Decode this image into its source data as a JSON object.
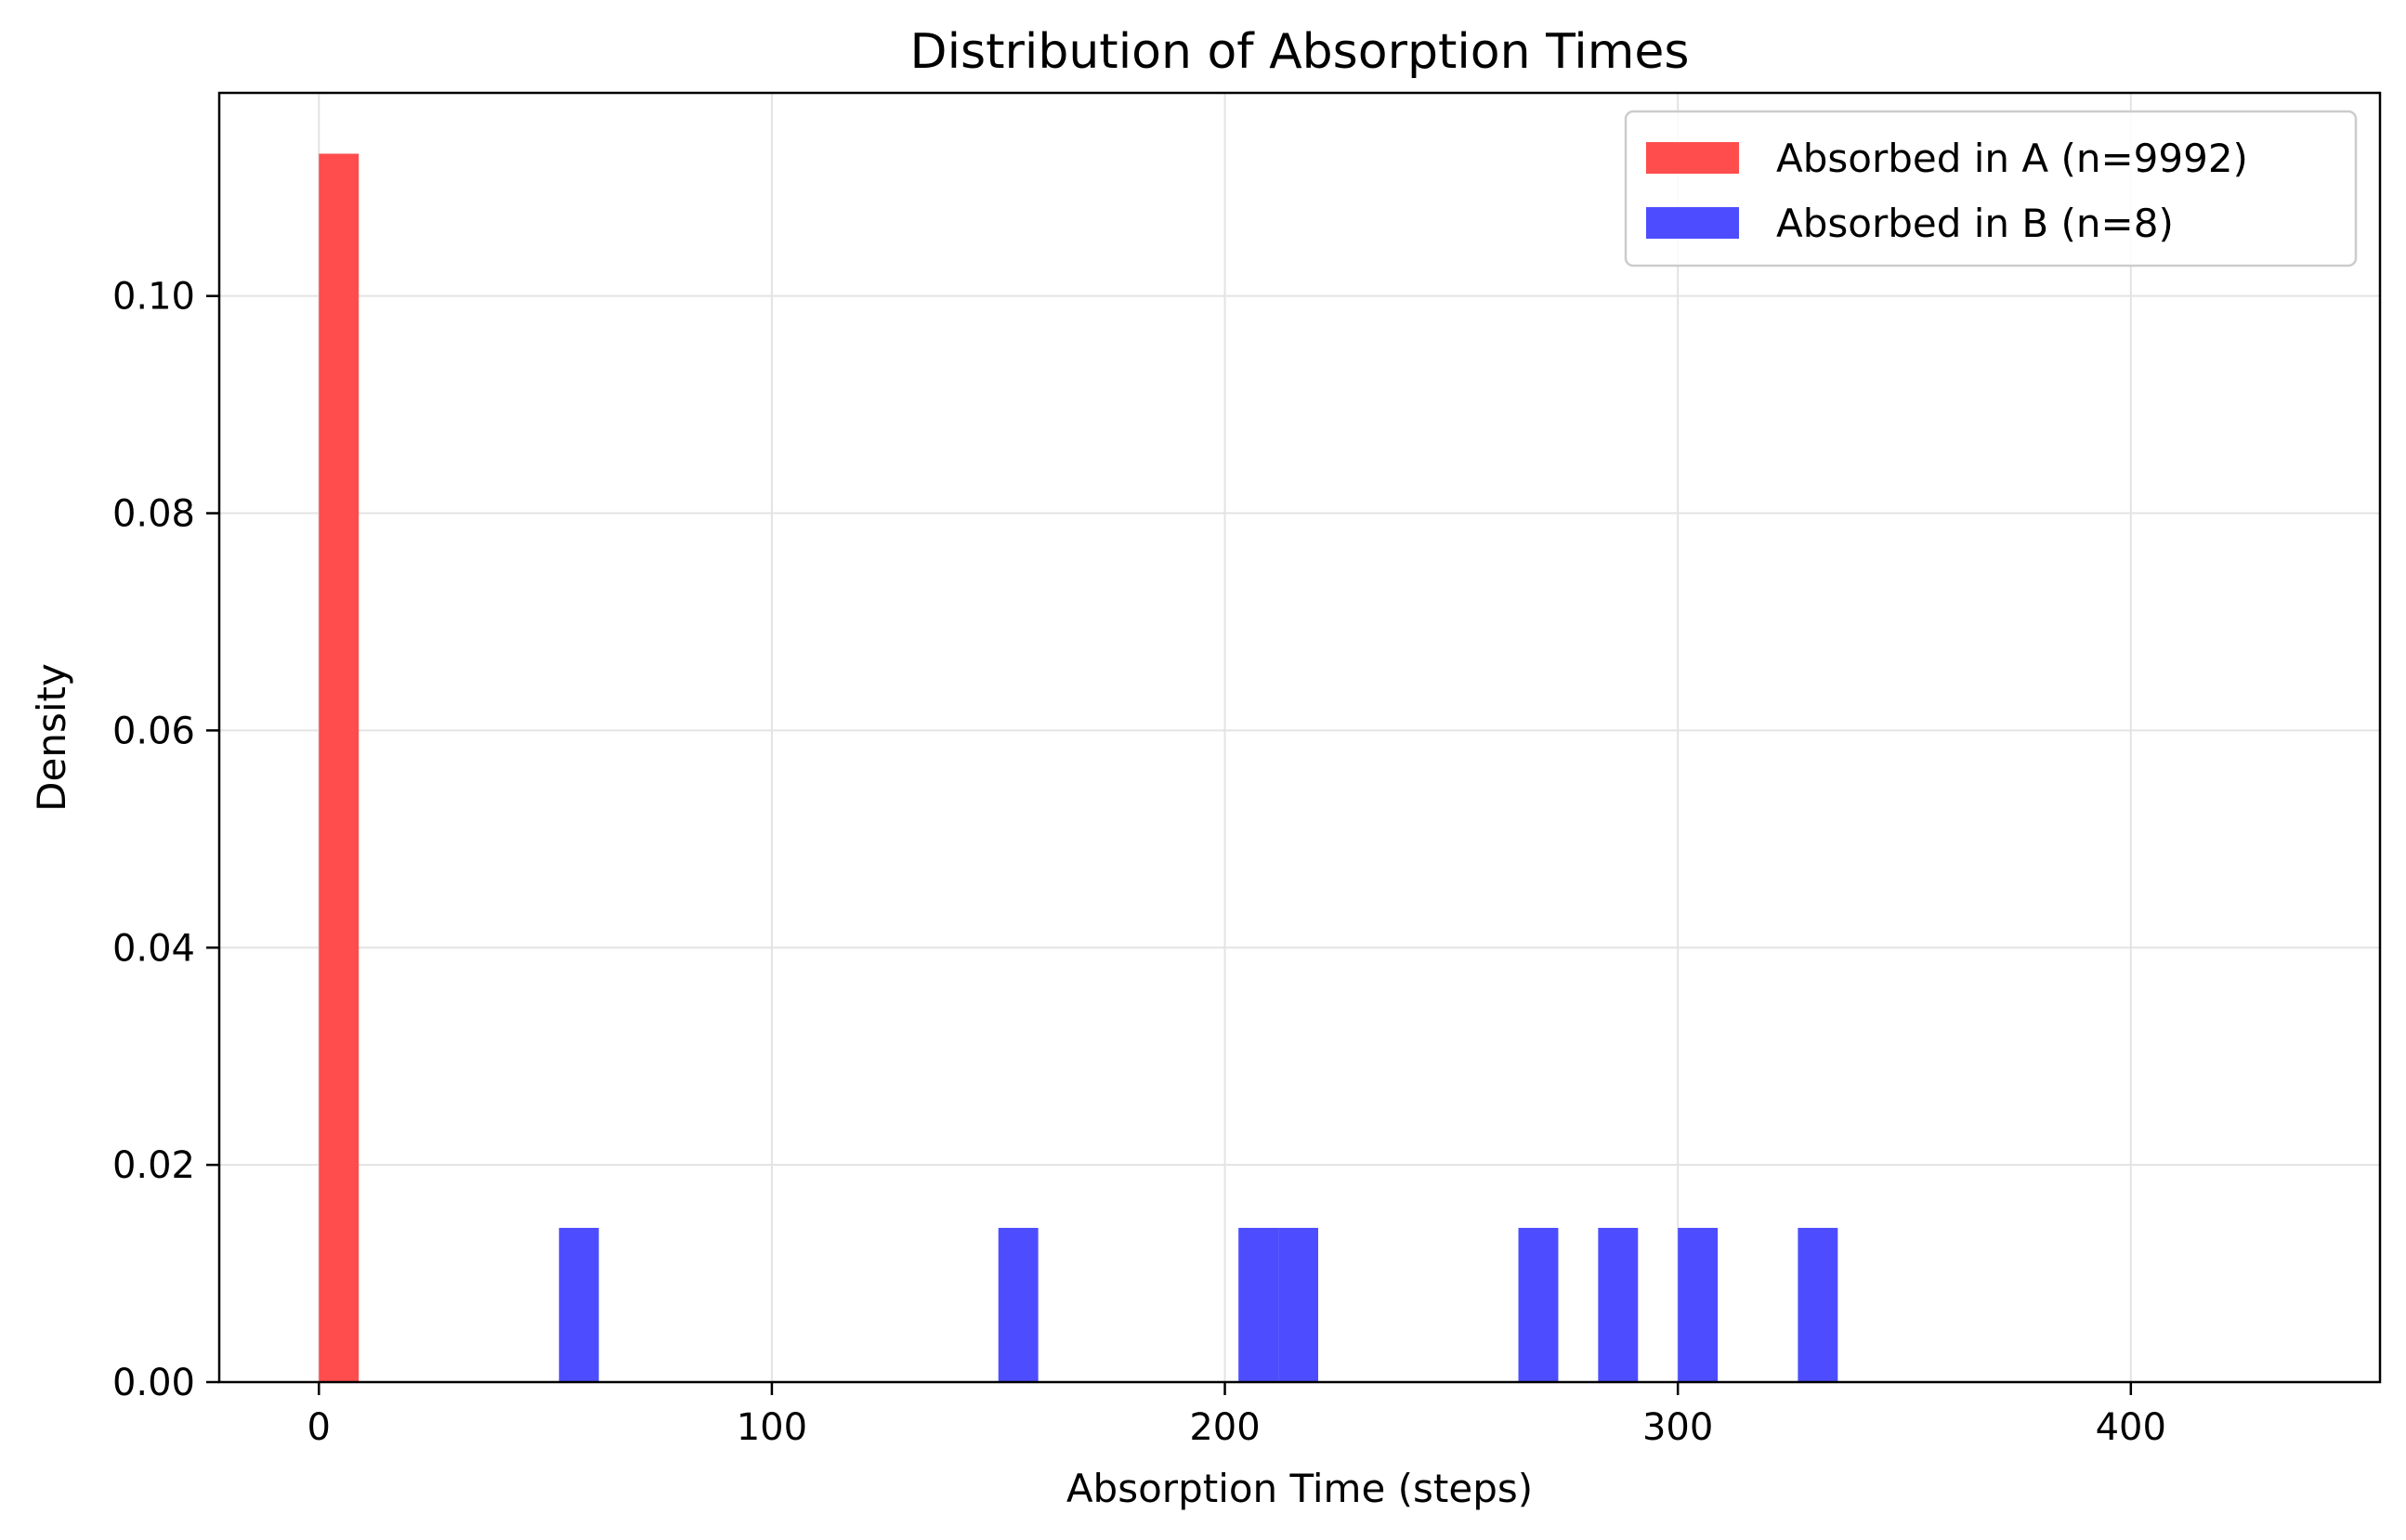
{
  "chart_data": {
    "type": "bar",
    "title": "Distribution of Absorption Times",
    "xlabel": "Absorption Time (steps)",
    "ylabel": "Density",
    "xlim": [
      -22,
      455
    ],
    "ylim": [
      0,
      0.1187
    ],
    "xticks": [
      0,
      100,
      200,
      300,
      400
    ],
    "xtick_labels": [
      "0",
      "100",
      "200",
      "300",
      "400"
    ],
    "yticks": [
      0.0,
      0.02,
      0.04,
      0.06,
      0.08,
      0.1
    ],
    "ytick_labels": [
      "0.00",
      "0.02",
      "0.04",
      "0.06",
      "0.08",
      "0.10"
    ],
    "grid": true,
    "legend_position": "top-right",
    "series": [
      {
        "name": "Absorbed in A (n=9992)",
        "color": "#ff4d4d",
        "bins": [
          {
            "x0": 0,
            "x1": 8.8,
            "y": 0.1131
          }
        ]
      },
      {
        "name": "Absorbed in B (n=8)",
        "color": "#4d4dff",
        "bins": [
          {
            "x0": 53.0,
            "x1": 61.8,
            "y": 0.0142
          },
          {
            "x0": 150.0,
            "x1": 158.8,
            "y": 0.0142
          },
          {
            "x0": 203.0,
            "x1": 211.8,
            "y": 0.0142
          },
          {
            "x0": 211.8,
            "x1": 220.6,
            "y": 0.0142
          },
          {
            "x0": 264.8,
            "x1": 273.6,
            "y": 0.0142
          },
          {
            "x0": 282.4,
            "x1": 291.2,
            "y": 0.0142
          },
          {
            "x0": 300.0,
            "x1": 308.8,
            "y": 0.0142
          },
          {
            "x0": 326.5,
            "x1": 335.3,
            "y": 0.0142
          }
        ]
      }
    ]
  }
}
